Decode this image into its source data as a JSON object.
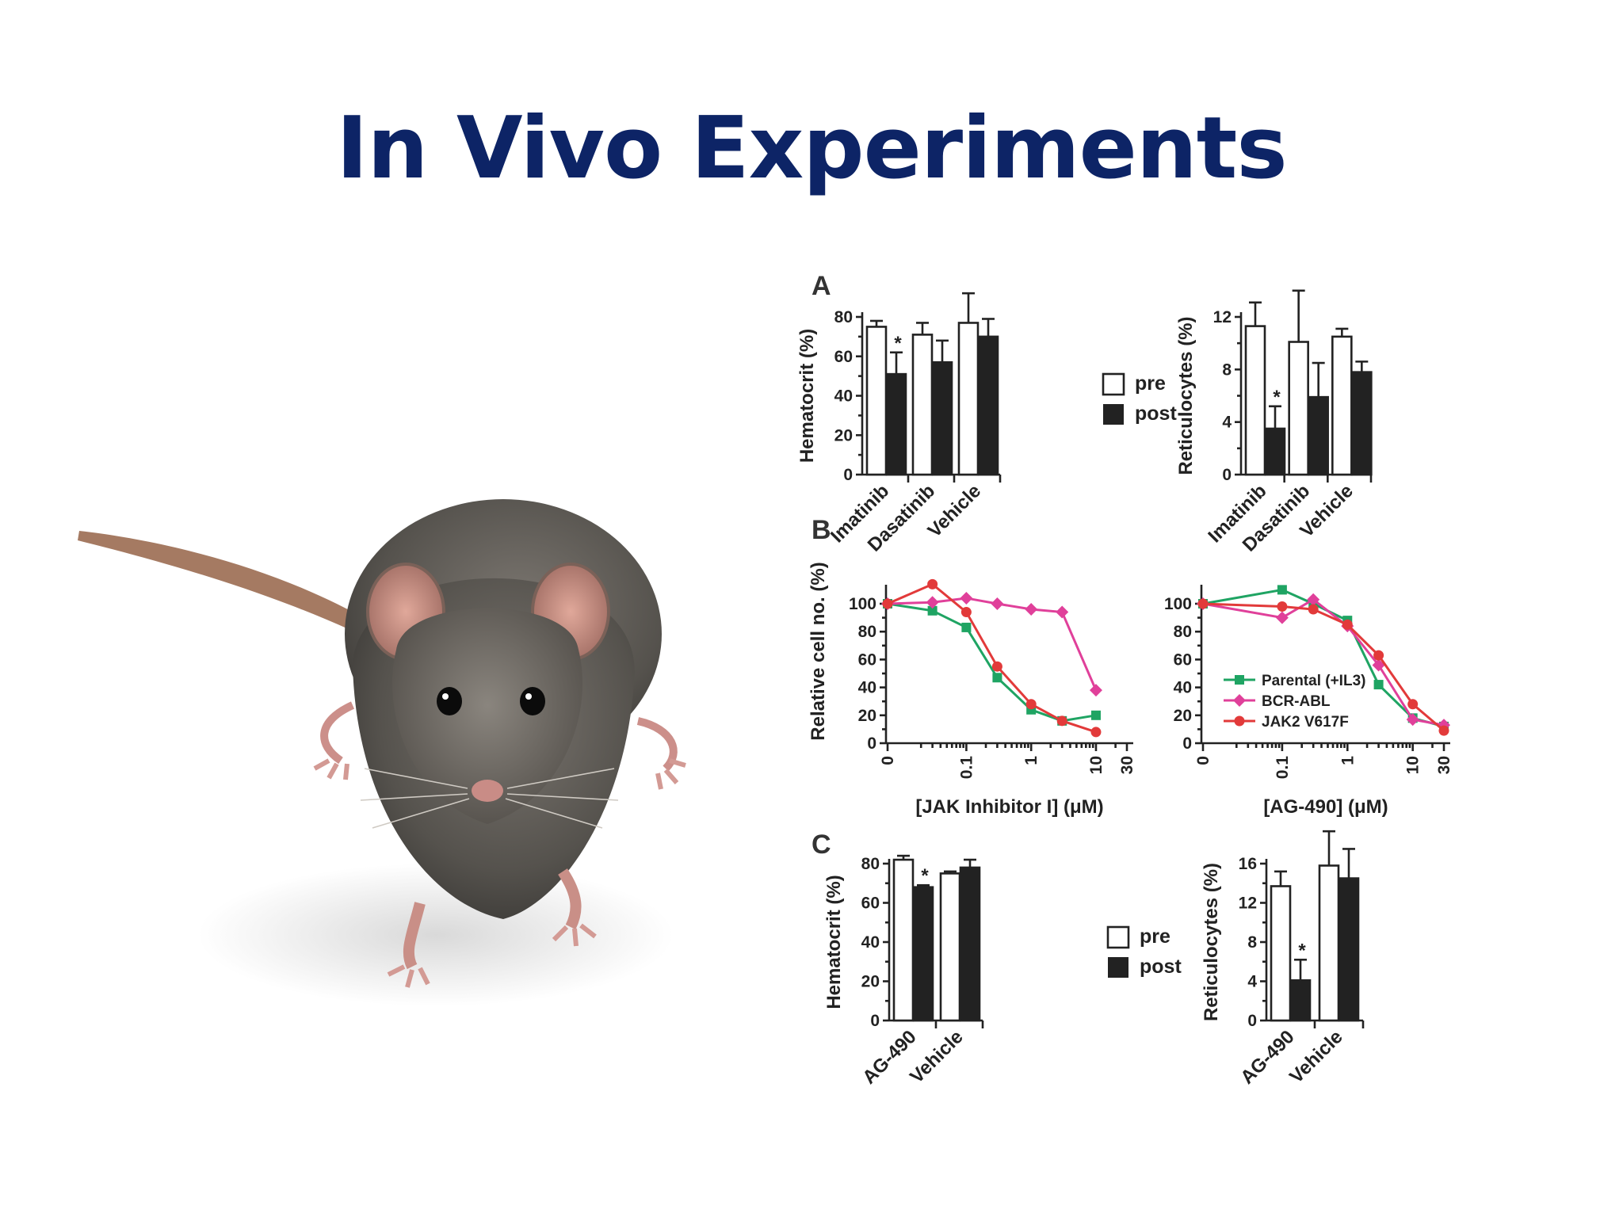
{
  "slide": {
    "title": "In Vivo Experiments"
  },
  "colors": {
    "title": "#0d2466",
    "pre": "#ffffff",
    "post": "#222222",
    "parental": "#1fa463",
    "bcr_abl": "#e0409a",
    "jak2": "#e23a3a"
  },
  "panels": {
    "a": "A",
    "b": "B",
    "c": "C"
  },
  "legend": {
    "pre": "pre",
    "post": "post"
  },
  "chart_data": [
    {
      "id": "a-hematocrit",
      "type": "bar",
      "panel": "A",
      "categories": [
        "Imatinib",
        "Dasatinib",
        "Vehicle"
      ],
      "ylabel": "Hematocrit (%)",
      "ylim": [
        0,
        80
      ],
      "yticks": [
        "0",
        "20",
        "40",
        "60",
        "80"
      ],
      "series": [
        {
          "name": "pre",
          "values": [
            75,
            71,
            77
          ],
          "errors": [
            3,
            6,
            15
          ]
        },
        {
          "name": "post",
          "values": [
            51,
            57,
            70
          ],
          "errors": [
            11,
            11,
            9
          ]
        }
      ],
      "annotations": [
        {
          "category": "Imatinib",
          "series": "post",
          "text": "*"
        }
      ]
    },
    {
      "id": "a-reticulocytes",
      "type": "bar",
      "panel": "A",
      "categories": [
        "Imatinib",
        "Dasatinib",
        "Vehicle"
      ],
      "ylabel": "Reticulocytes (%)",
      "ylim": [
        0,
        12
      ],
      "yticks": [
        "0",
        "4",
        "8",
        "12"
      ],
      "series": [
        {
          "name": "pre",
          "values": [
            11.3,
            10.1,
            10.5
          ],
          "errors": [
            1.8,
            3.9,
            0.6
          ]
        },
        {
          "name": "post",
          "values": [
            3.5,
            5.9,
            7.8
          ],
          "errors": [
            1.7,
            2.6,
            0.8
          ]
        }
      ],
      "annotations": [
        {
          "category": "Imatinib",
          "series": "post",
          "text": "*"
        }
      ]
    },
    {
      "id": "b-jak-inhibitor",
      "type": "line",
      "panel": "B",
      "xlabel": "[JAK Inhibitor I] (μM)",
      "ylabel": "Relative cell no. (%)",
      "xscale": "log",
      "xticks": [
        "0",
        "0.1",
        "1",
        "10",
        "30"
      ],
      "ylim": [
        0,
        100
      ],
      "yticks": [
        "0",
        "20",
        "40",
        "60",
        "80",
        "100"
      ],
      "series": [
        {
          "name": "Parental (+IL3)",
          "x": [
            0,
            0.03,
            0.1,
            0.3,
            1,
            3,
            10
          ],
          "y": [
            100,
            95,
            83,
            47,
            24,
            16,
            20
          ]
        },
        {
          "name": "BCR-ABL",
          "x": [
            0,
            0.03,
            0.1,
            0.3,
            1,
            3,
            10
          ],
          "y": [
            100,
            101,
            104,
            100,
            96,
            94,
            38
          ]
        },
        {
          "name": "JAK2 V617F",
          "x": [
            0,
            0.03,
            0.1,
            0.3,
            1,
            3,
            10
          ],
          "y": [
            100,
            114,
            94,
            55,
            28,
            16,
            8
          ]
        }
      ]
    },
    {
      "id": "b-ag490",
      "type": "line",
      "panel": "B",
      "xlabel": "[AG-490] (μM)",
      "ylabel": "",
      "xscale": "log",
      "xticks": [
        "0",
        "0.1",
        "1",
        "10",
        "30"
      ],
      "ylim": [
        0,
        100
      ],
      "yticks": [
        "0",
        "20",
        "40",
        "60",
        "80",
        "100"
      ],
      "legend_position": "bottom-left",
      "series": [
        {
          "name": "Parental (+IL3)",
          "x": [
            0,
            0.1,
            0.3,
            1,
            3,
            10,
            30
          ],
          "y": [
            100,
            110,
            100,
            88,
            42,
            18,
            12
          ]
        },
        {
          "name": "BCR-ABL",
          "x": [
            0,
            0.1,
            0.3,
            1,
            3,
            10,
            30
          ],
          "y": [
            100,
            90,
            103,
            84,
            56,
            17,
            13
          ]
        },
        {
          "name": "JAK2 V617F",
          "x": [
            0,
            0.1,
            0.3,
            1,
            3,
            10,
            30
          ],
          "y": [
            100,
            98,
            96,
            85,
            63,
            28,
            9
          ]
        }
      ]
    },
    {
      "id": "c-hematocrit",
      "type": "bar",
      "panel": "C",
      "categories": [
        "AG-490",
        "Vehicle"
      ],
      "ylabel": "Hematocrit (%)",
      "ylim": [
        0,
        80
      ],
      "yticks": [
        "0",
        "20",
        "40",
        "60",
        "80"
      ],
      "series": [
        {
          "name": "pre",
          "values": [
            82,
            75
          ],
          "errors": [
            2,
            1
          ]
        },
        {
          "name": "post",
          "values": [
            68,
            78
          ],
          "errors": [
            1,
            4
          ]
        }
      ],
      "annotations": [
        {
          "category": "AG-490",
          "series": "post",
          "text": "*"
        }
      ]
    },
    {
      "id": "c-reticulocytes",
      "type": "bar",
      "panel": "C",
      "categories": [
        "AG-490",
        "Vehicle"
      ],
      "ylabel": "Reticulocytes (%)",
      "ylim": [
        0,
        16
      ],
      "yticks": [
        "0",
        "4",
        "8",
        "12",
        "16"
      ],
      "series": [
        {
          "name": "pre",
          "values": [
            13.7,
            15.8
          ],
          "errors": [
            1.5,
            3.5
          ]
        },
        {
          "name": "post",
          "values": [
            4.1,
            14.5
          ],
          "errors": [
            2.1,
            3.0
          ]
        }
      ],
      "annotations": [
        {
          "category": "AG-490",
          "series": "post",
          "text": "*"
        }
      ]
    }
  ]
}
